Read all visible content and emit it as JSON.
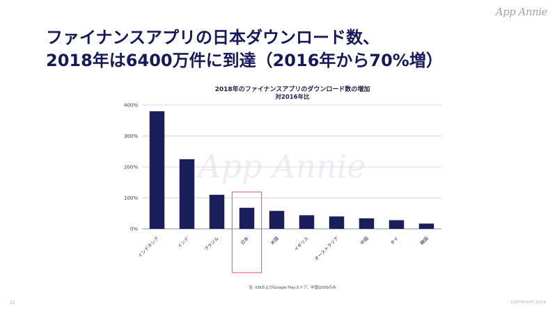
{
  "brand": {
    "logo_text": "App Annie",
    "watermark_text": "App Annie"
  },
  "slide": {
    "title_line1": "ファイナンスアプリの日本ダウンロード数、",
    "title_line2": "2018年は6400万件に到達（2016年から70%増）"
  },
  "chart_data": {
    "type": "bar",
    "title": "2018年のファイナンスアプリのダウンロード数の増加",
    "subtitle": "対2016年比",
    "categories": [
      "インドネシア",
      "インド",
      "ブラジル",
      "日本",
      "米国",
      "イギリス",
      "オーストラリア",
      "中国",
      "タイ",
      "韓国"
    ],
    "values": [
      380,
      225,
      110,
      68,
      58,
      44,
      40,
      34,
      28,
      17
    ],
    "yticks": [
      "0%",
      "100%",
      "200%",
      "300%",
      "400%"
    ],
    "ylim": [
      0,
      400
    ],
    "grid": true,
    "highlighted_category": "日本",
    "bar_color": "#1a1f5c",
    "highlight_color": "#f06292"
  },
  "footnote": "注: iOSおよびGoogle Playストア、中国はiOSのみ",
  "page_number": "21",
  "copyright": "COPYRIGHT 2019"
}
